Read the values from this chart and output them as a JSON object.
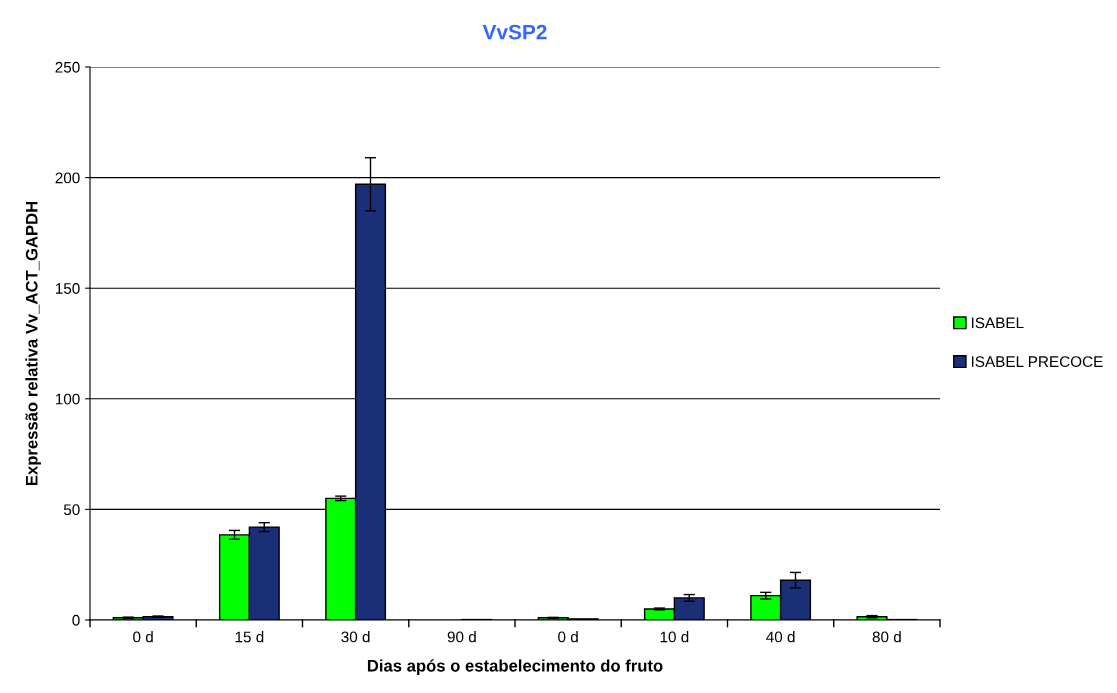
{
  "chart_data": {
    "type": "bar",
    "title": "VvSP2",
    "xlabel": "Dias após o estabelecimento do fruto",
    "ylabel": "Expressão relativa Vv_ACT_GAPDH",
    "categories": [
      "0 d",
      "15 d",
      "30 d",
      "90 d",
      "0 d",
      "10 d",
      "40 d",
      "80 d"
    ],
    "series": [
      {
        "name": "ISABEL",
        "color": "#00ff00",
        "values": [
          1,
          38.5,
          55,
          null,
          1,
          5,
          11,
          1.5
        ],
        "errors": [
          0.3,
          2,
          1,
          null,
          0.2,
          0.4,
          1.5,
          0.5
        ]
      },
      {
        "name": "ISABEL PRECOCE",
        "color": "#1a2f78",
        "values": [
          1.5,
          42,
          197,
          0.2,
          0.5,
          10,
          18,
          0.2
        ],
        "errors": [
          0.3,
          2,
          12,
          null,
          null,
          1.5,
          3.5,
          null
        ]
      }
    ],
    "ylim": [
      0,
      250
    ],
    "yticks": [
      0,
      50,
      100,
      150,
      200,
      250
    ],
    "grid": "y",
    "legend": "right"
  }
}
